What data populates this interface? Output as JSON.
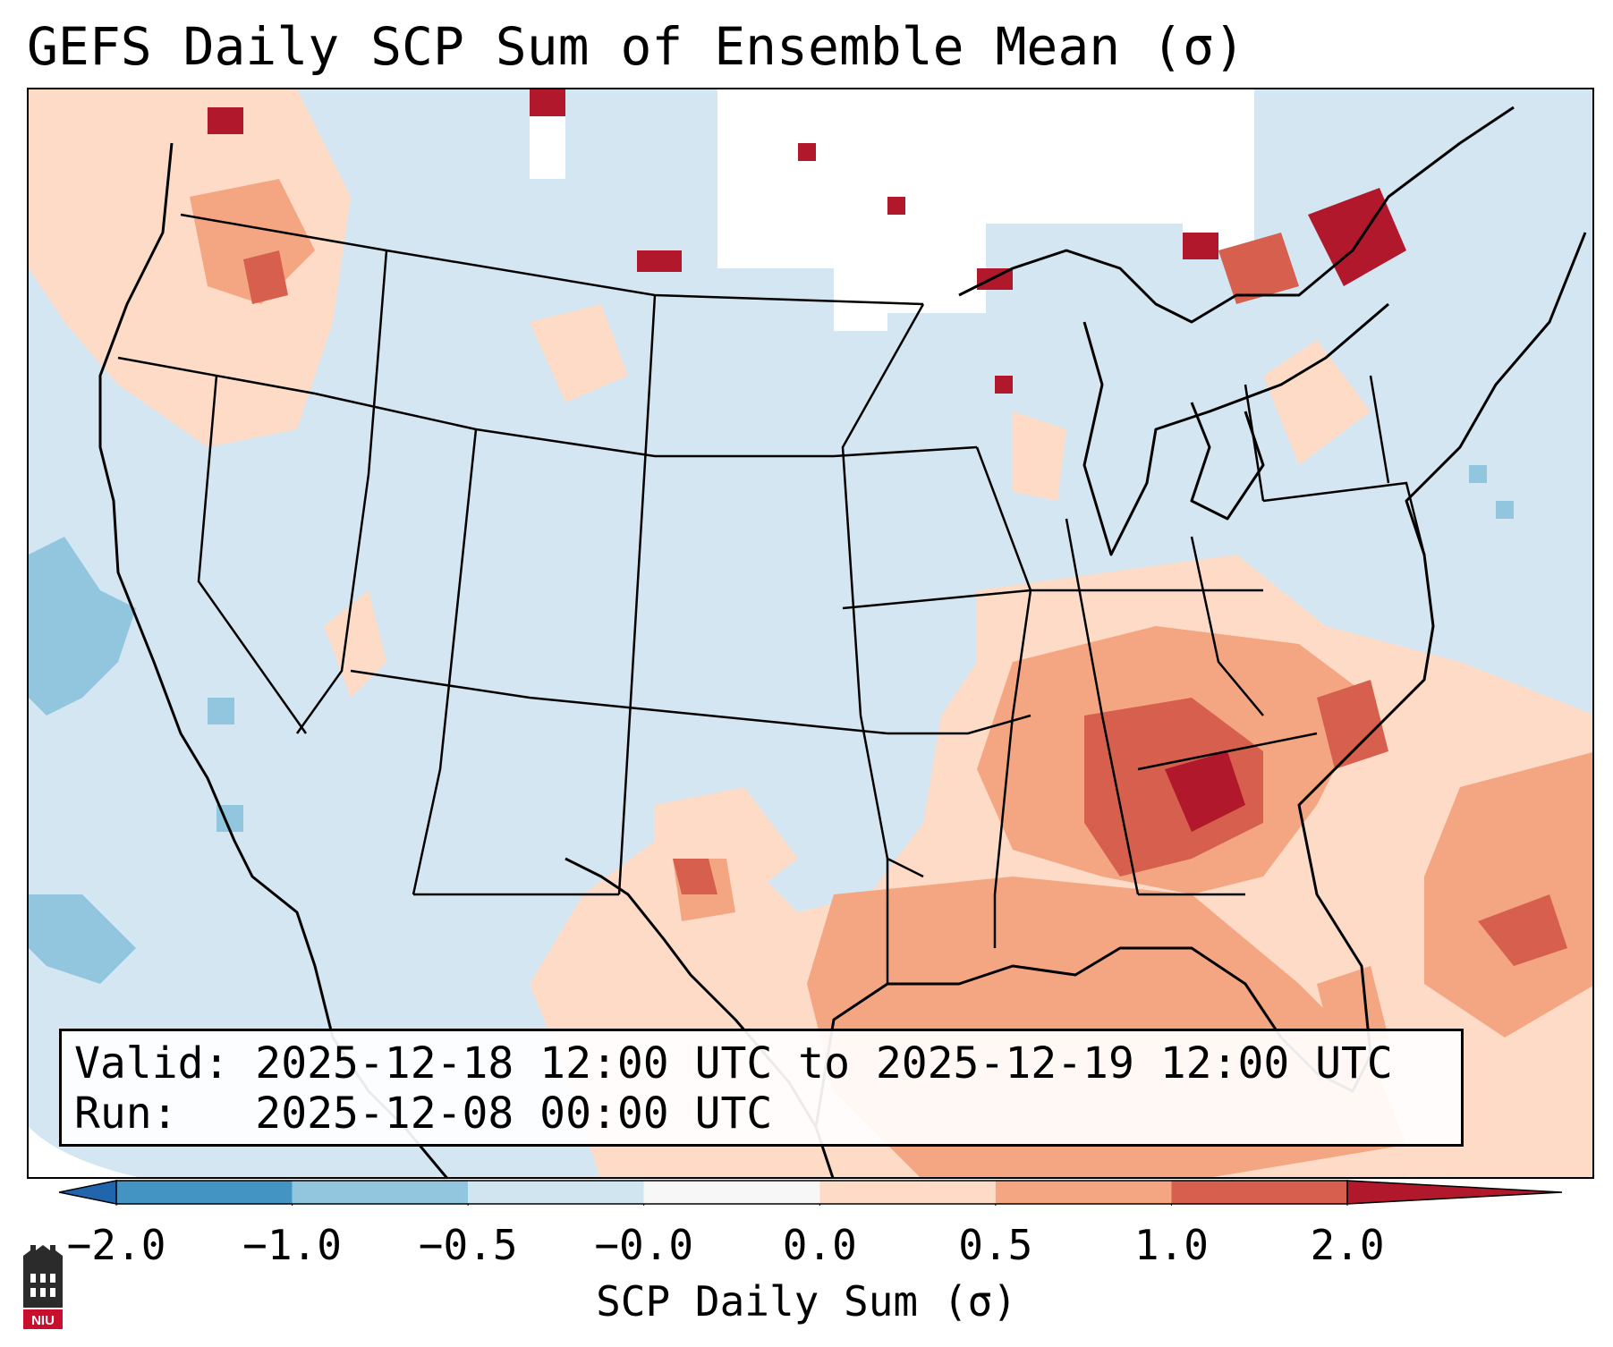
{
  "title": "GEFS Daily SCP Sum of Ensemble Mean (σ)",
  "info_box": {
    "valid_label": "Valid:",
    "valid_value": "2025-12-18 12:00 UTC to 2025-12-19 12:00 UTC",
    "run_label": "Run:",
    "run_value": "2025-12-08 00:00 UTC"
  },
  "colorbar": {
    "label": "SCP Daily Sum (σ)",
    "ticks": [
      "−2.0",
      "−1.0",
      "−0.5",
      "−0.0",
      "0.0",
      "0.5",
      "1.0",
      "2.0"
    ],
    "segment_colors": [
      "#4393c3",
      "#92c5de",
      "#d1e5f0",
      "#f7f7f7",
      "#fddbc7",
      "#f4a582",
      "#d6604d"
    ],
    "extend_low_color": "#2166ac",
    "extend_high_color": "#b2182b"
  },
  "map": {
    "ocean_color": "#d3e6f1",
    "no_data_color": "#ffffff",
    "region_labels": []
  },
  "logo": {
    "text": "NIU",
    "brand_color": "#c8102e"
  }
}
